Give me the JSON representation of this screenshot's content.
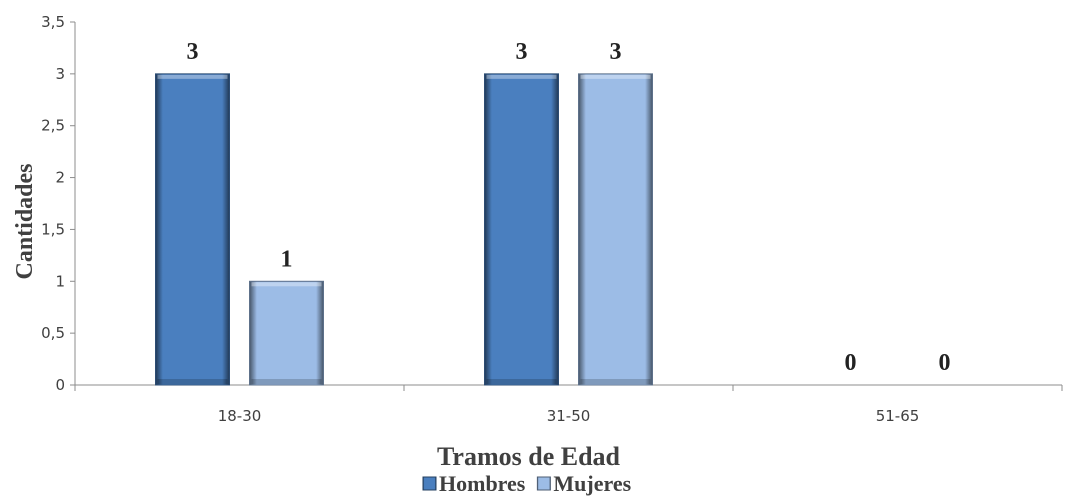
{
  "chart_data": {
    "type": "bar",
    "title": "",
    "xlabel": "Tramos de Edad",
    "ylabel": "Cantidades",
    "categories": [
      "18-30",
      "31-50",
      "51-65"
    ],
    "series": [
      {
        "name": "Hombres",
        "values": [
          3,
          3,
          0
        ],
        "color": "#4a7fbf"
      },
      {
        "name": "Mujeres",
        "values": [
          1,
          3,
          0
        ],
        "color": "#9cbce6"
      }
    ],
    "ylim": [
      0,
      3.5
    ],
    "yticks": [
      "0",
      "0,5",
      "1",
      "1,5",
      "2",
      "2,5",
      "3",
      "3,5"
    ],
    "data_labels": [
      [
        "3",
        "3",
        "0"
      ],
      [
        "1",
        "3",
        "0"
      ]
    ],
    "grid": false,
    "legend_position": "bottom"
  }
}
